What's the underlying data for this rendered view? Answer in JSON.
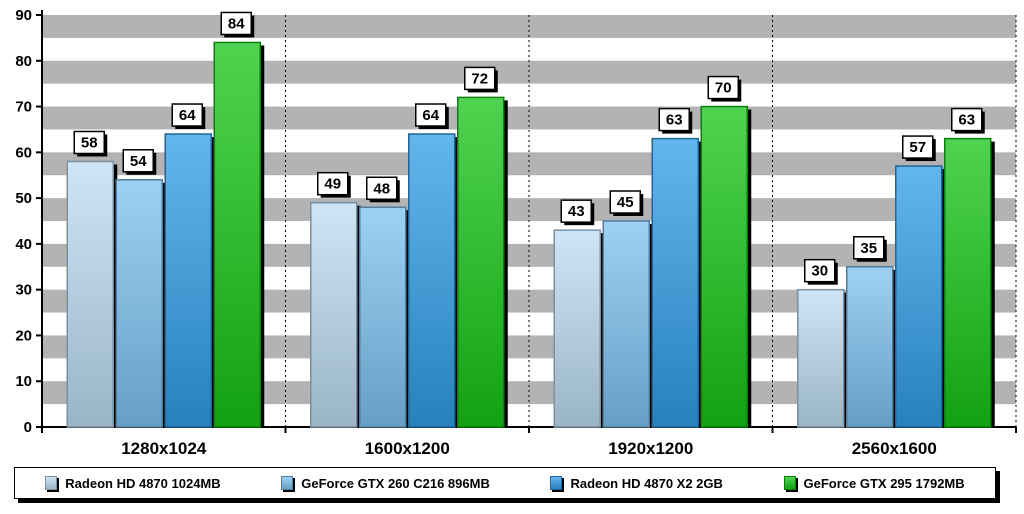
{
  "chart_data": {
    "type": "bar",
    "categories": [
      "1280x1024",
      "1600x1200",
      "1920x1200",
      "2560x1600"
    ],
    "series": [
      {
        "name": "Radeon HD 4870 1024MB",
        "values": [
          58,
          49,
          43,
          30
        ],
        "color": "#bcdcf4"
      },
      {
        "name": "GeForce GTX 260 C216 896MB",
        "values": [
          54,
          48,
          45,
          35
        ],
        "color": "#7cc2f0"
      },
      {
        "name": "Radeon HD 4870 X2 2GB",
        "values": [
          64,
          64,
          63,
          57
        ],
        "color": "#2f9de6"
      },
      {
        "name": "GeForce GTX 295 1792MB",
        "values": [
          84,
          72,
          70,
          63
        ],
        "color": "#16c416"
      }
    ],
    "ylim": [
      0,
      90
    ],
    "yticks": [
      0,
      10,
      20,
      30,
      40,
      50,
      60,
      70,
      80,
      90
    ],
    "title": "",
    "xlabel": "",
    "ylabel": "",
    "grid": "alternating gray horizontal bands",
    "legend_position": "bottom"
  }
}
